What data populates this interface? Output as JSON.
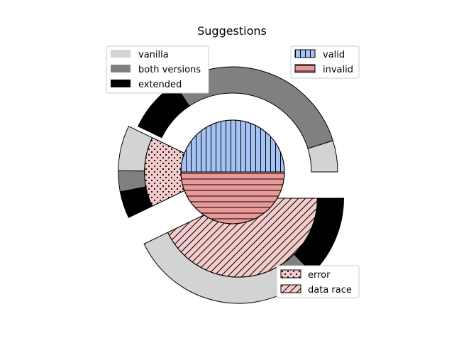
{
  "chart_data": {
    "type": "pie",
    "title": "Suggestions",
    "start_angle_deg": 0,
    "direction": "counterclockwise",
    "inner_pie": {
      "slices": [
        {
          "label": "valid",
          "value": 37.5,
          "color": "#a4c2f4",
          "hatch": "vertical"
        },
        {
          "label": "invalid",
          "value": 50.0,
          "color": "#ea9999",
          "hatch": "horizontal"
        }
      ],
      "explode_angle_deg": 270
    },
    "middle_ring": {
      "slices": [
        {
          "label": "error",
          "value": 12.5,
          "color": "#f4cccc",
          "hatch": "dots"
        },
        {
          "label": "data race",
          "value": 37.5,
          "color": "#f4cccc",
          "hatch": "diagonal"
        }
      ],
      "explode_angle_deg": 270
    },
    "outer_ring": {
      "slices": [
        {
          "group": "valid",
          "category": "vanilla",
          "value": 4.2
        },
        {
          "group": "valid",
          "category": "both versions",
          "value": 25.8
        },
        {
          "group": "valid",
          "category": "extended",
          "value": 7.5
        },
        {
          "group": "error",
          "category": "vanilla",
          "value": 6.1
        },
        {
          "group": "error",
          "category": "both versions",
          "value": 2.8
        },
        {
          "group": "error",
          "category": "extended",
          "value": 3.6
        },
        {
          "group": "data race",
          "category": "vanilla",
          "value": 23.0
        },
        {
          "group": "data race",
          "category": "both versions",
          "value": 3.5
        },
        {
          "group": "data race",
          "category": "extended",
          "value": 11.0
        }
      ],
      "category_colors": {
        "vanilla": "#d3d3d3",
        "both versions": "#808080",
        "extended": "#000000"
      }
    },
    "legends": {
      "outer": {
        "placement": "upper-left",
        "entries": [
          "vanilla",
          "both versions",
          "extended"
        ]
      },
      "inner": {
        "placement": "upper-right",
        "entries": [
          "valid",
          "invalid"
        ]
      },
      "middle": {
        "placement": "lower-right",
        "entries": [
          "error",
          "data race"
        ]
      }
    }
  }
}
